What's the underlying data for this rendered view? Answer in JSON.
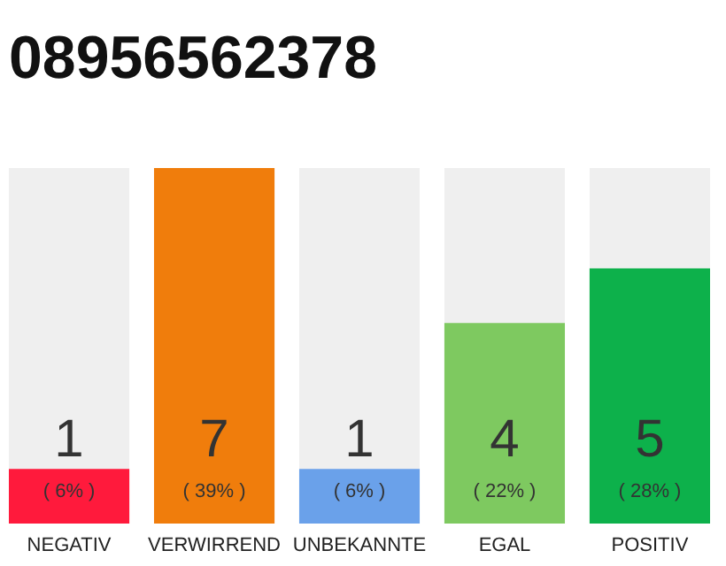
{
  "chart_data": {
    "type": "bar",
    "title": "08956562378",
    "categories": [
      "NEGATIV",
      "VERWIRREND",
      "UNBEKANNTE",
      "EGAL",
      "POSITIV"
    ],
    "values": [
      6,
      39,
      6,
      22,
      28
    ],
    "colors": [
      "#ff1a3c",
      "#f07d0c",
      "#6aa1ea",
      "#7ec960",
      "#0db14b"
    ],
    "value_labels": [
      "( 6% )",
      "( 39% )",
      "( 6% )",
      "( 22% )",
      "( 28% )"
    ],
    "annotations": [
      "1",
      "7",
      "1",
      "4",
      "5"
    ],
    "grid": false
  }
}
